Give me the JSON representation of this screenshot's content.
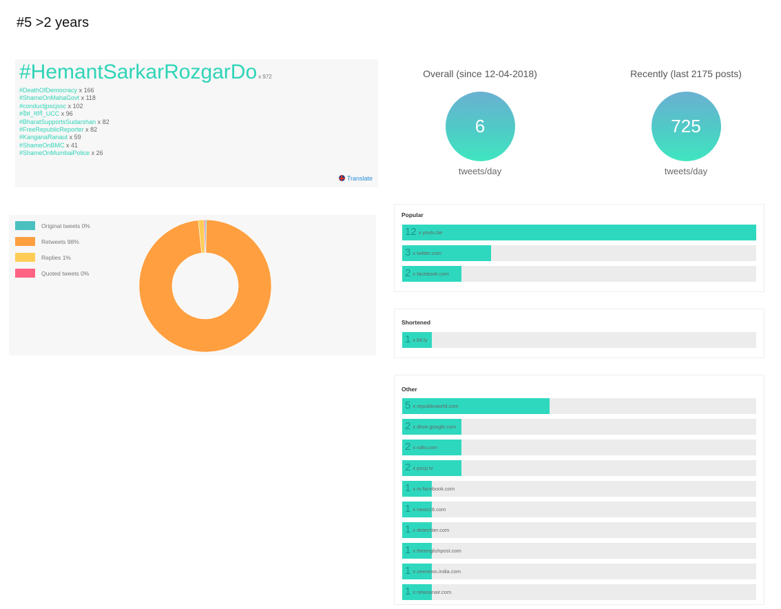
{
  "heading": "#5 >2 years",
  "hashtags": {
    "top": {
      "tag": "#HemantSarkarRozgarDo",
      "count": "x 972"
    },
    "items": [
      {
        "tag": "#DeathOfDemocracy",
        "count": "x 166"
      },
      {
        "tag": "#ShameOnMahaGovt",
        "count": "x 118"
      },
      {
        "tag": "#conductjpscjssc",
        "count": "x 102"
      },
      {
        "tag": "#देश_मांगे_UCC",
        "count": "x 96"
      },
      {
        "tag": "#BharatSupportsSudarshan",
        "count": "x 82"
      },
      {
        "tag": "#FreeRepublicReporter",
        "count": "x 82"
      },
      {
        "tag": "#KanganaRanaut",
        "count": "x 59"
      },
      {
        "tag": "#ShameOnBMC",
        "count": "x 41"
      },
      {
        "tag": "#ShameOnMumbaiPolice",
        "count": "x 26"
      }
    ],
    "translate": "Translate"
  },
  "rates": {
    "overall": {
      "label": "Overall (since 12-04-2018)",
      "value": "6",
      "unit": "tweets/day"
    },
    "recent": {
      "label": "Recently (last 2175 posts)",
      "value": "725",
      "unit": "tweets/day"
    }
  },
  "colors": {
    "accent": "#2ed8be",
    "original": "#4bc0c0",
    "retweets": "#ff9f40",
    "replies": "#ffcd56",
    "quoted": "#ff6384"
  },
  "legend": [
    {
      "label": "Original tweets 0%",
      "color": "#4bc0c0"
    },
    {
      "label": "Retweets 98%",
      "color": "#ff9f40"
    },
    {
      "label": "Replies 1%",
      "color": "#ffcd56"
    },
    {
      "label": "Quoted tweets 0%",
      "color": "#ff6384"
    }
  ],
  "chart_data": {
    "type": "pie",
    "categories": [
      "Original tweets",
      "Retweets",
      "Replies",
      "Quoted tweets"
    ],
    "values": [
      0.3,
      98,
      1.4,
      0.3
    ],
    "colors": [
      "#4bc0c0",
      "#ff9f40",
      "#ffcd56",
      "#ff6384"
    ]
  },
  "links": {
    "popular": {
      "title": "Popular",
      "max": 12,
      "items": [
        {
          "count": "12",
          "domain": "x youtu.be",
          "value": 12
        },
        {
          "count": "3",
          "domain": "x twitter.com",
          "value": 3
        },
        {
          "count": "2",
          "domain": "x facebook.com",
          "value": 2
        }
      ]
    },
    "shortened": {
      "title": "Shortened",
      "max": 12,
      "items": [
        {
          "count": "1",
          "domain": "x bit.ly",
          "value": 1
        }
      ]
    },
    "other": {
      "title": "Other",
      "max": 12,
      "items": [
        {
          "count": "5",
          "domain": "x republicworld.com",
          "value": 5
        },
        {
          "count": "2",
          "domain": "x drive.google.com",
          "value": 2
        },
        {
          "count": "2",
          "domain": "x ndtv.com",
          "value": 2
        },
        {
          "count": "2",
          "domain": "x pscp.tv",
          "value": 2
        },
        {
          "count": "1",
          "domain": "x m.facebook.com",
          "value": 1
        },
        {
          "count": "1",
          "domain": "x news18.com",
          "value": 1
        },
        {
          "count": "1",
          "domain": "x detechter.com",
          "value": 1
        },
        {
          "count": "1",
          "domain": "x theenglishpost.com",
          "value": 1
        },
        {
          "count": "1",
          "domain": "x zeenews.india.com",
          "value": 1
        },
        {
          "count": "1",
          "domain": "x newsonair.com",
          "value": 1
        }
      ]
    }
  }
}
